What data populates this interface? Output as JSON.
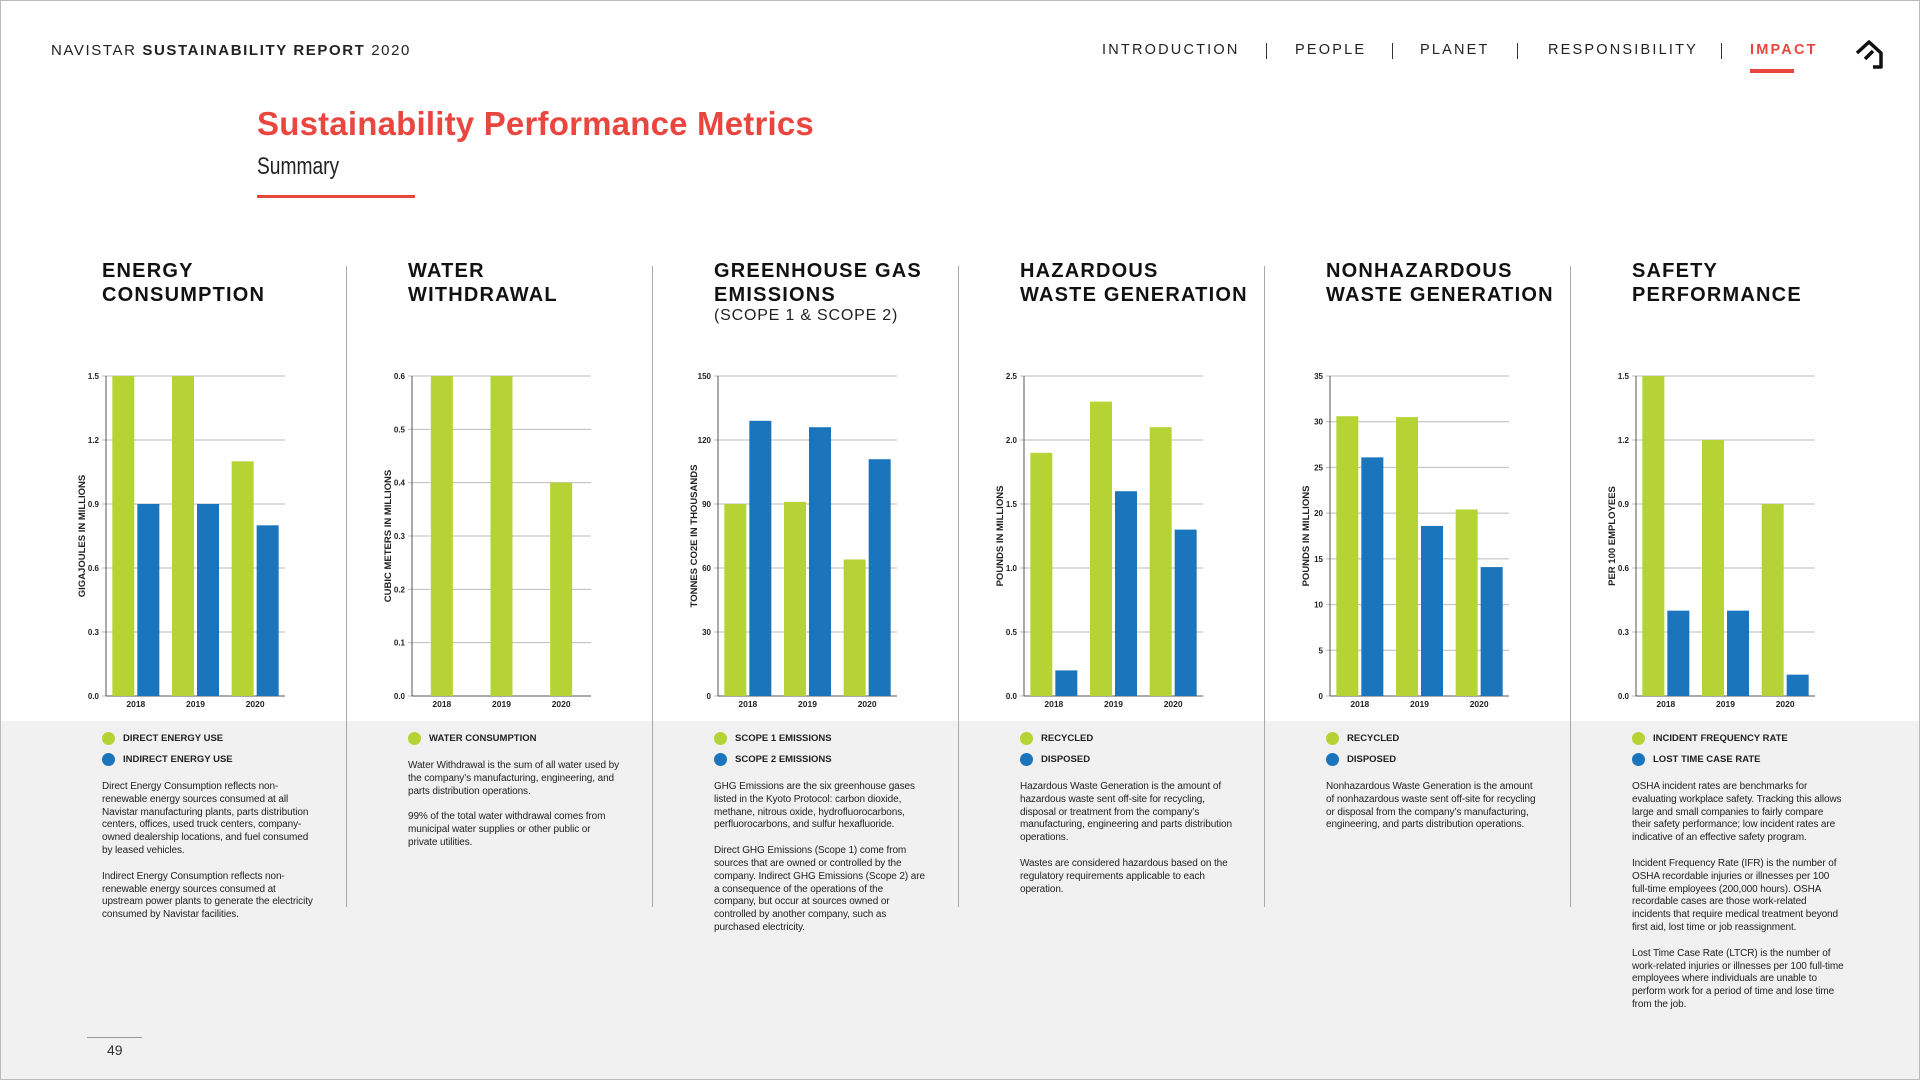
{
  "header": {
    "title_parts": [
      "NAVISTAR",
      "SUSTAINABILITY REPORT",
      "2020"
    ]
  },
  "nav": {
    "items": [
      "INTRODUCTION",
      "PEOPLE",
      "PLANET",
      "RESPONSIBILITY",
      "IMPACT"
    ],
    "active": "IMPACT"
  },
  "page_title": "Sustainability Performance Metrics",
  "page_subtitle": "Summary",
  "page_number": "49",
  "chart_data": [
    {
      "type": "bar",
      "title": "ENERGY\nCONSUMPTION",
      "ylabel": "GIGAJOULES IN MILLIONS",
      "categories": [
        "2018",
        "2019",
        "2020"
      ],
      "series": [
        {
          "name": "DIRECT ENERGY USE",
          "color": "#b5d334",
          "values": [
            1.5,
            1.5,
            1.1
          ]
        },
        {
          "name": "INDIRECT ENERGY USE",
          "color": "#1a75bc",
          "values": [
            0.9,
            0.9,
            0.8
          ]
        }
      ],
      "ylim": [
        0,
        1.5
      ],
      "yticks": [
        {
          "value": 0,
          "label": "0.0"
        },
        0.3,
        0.6,
        0.9,
        1.2,
        1.5
      ],
      "grid": true,
      "description": [
        "Direct Energy Consumption reflects non-renewable energy sources consumed at all Navistar manufacturing plants, parts distribution centers, offices, used truck centers, company-owned dealership locations, and fuel consumed by leased vehicles.",
        "Indirect Energy Consumption reflects non-renewable energy sources consumed at upstream power plants to generate the electricity consumed by Navistar facilities."
      ]
    },
    {
      "type": "bar",
      "title": "WATER\nWITHDRAWAL",
      "ylabel": "CUBIC METERS IN MILLIONS",
      "categories": [
        "2018",
        "2019",
        "2020"
      ],
      "series": [
        {
          "name": "WATER CONSUMPTION",
          "color": "#b5d334",
          "values": [
            0.6,
            0.6,
            0.4
          ]
        }
      ],
      "ylim": [
        0,
        0.6
      ],
      "yticks": [
        {
          "value": 0,
          "label": "0.0"
        },
        0.1,
        0.2,
        0.3,
        0.4,
        0.5,
        0.6
      ],
      "grid": true,
      "description": [
        "Water Withdrawal is the sum of all water used by the company’s manufacturing, engineering, and parts distribution operations.",
        "99% of the total water withdrawal comes from municipal water supplies or other public or private utilities."
      ]
    },
    {
      "type": "bar",
      "title": "GREENHOUSE GAS\nEMISSIONS",
      "subtitle": "(SCOPE 1 & SCOPE 2)",
      "ylabel": "TONNES CO2E IN THOUSANDS",
      "categories": [
        "2018",
        "2019",
        "2020"
      ],
      "series": [
        {
          "name": "SCOPE 1 EMISSIONS",
          "color": "#b5d334",
          "values": [
            90,
            91,
            64
          ]
        },
        {
          "name": "SCOPE 2 EMISSIONS",
          "color": "#1a75bc",
          "values": [
            129,
            126,
            111
          ]
        }
      ],
      "ylim": [
        0,
        150
      ],
      "yticks": [
        0,
        30,
        60,
        90,
        120,
        150
      ],
      "grid": true,
      "description": [
        "GHG Emissions are the six greenhouse gases listed in the Kyoto Protocol: carbon dioxide, methane, nitrous oxide, hydrofluorocarbons, perfluorocarbons, and sulfur hexafluoride.",
        "Direct GHG Emissions (Scope 1) come from sources that are owned or controlled by the company. Indirect GHG Emissions (Scope 2) are a consequence of the operations of the company, but occur at sources owned or controlled by another company, such as purchased electricity."
      ]
    },
    {
      "type": "bar",
      "title": "HAZARDOUS\nWASTE GENERATION",
      "ylabel": "POUNDS IN MILLIONS",
      "categories": [
        "2018",
        "2019",
        "2020"
      ],
      "series": [
        {
          "name": "RECYCLED",
          "color": "#b5d334",
          "values": [
            1.9,
            2.3,
            2.1
          ]
        },
        {
          "name": "DISPOSED",
          "color": "#1a75bc",
          "values": [
            0.2,
            1.6,
            1.3
          ]
        }
      ],
      "ylim": [
        0,
        2.5
      ],
      "yticks": [
        {
          "value": 0,
          "label": "0.0"
        },
        0.5,
        {
          "value": 1,
          "label": "1.0"
        },
        1.5,
        {
          "value": 2,
          "label": "2.0"
        },
        2.5
      ],
      "grid": true,
      "description": [
        "Hazardous Waste Generation is the amount of hazardous waste sent off-site for recycling, disposal or treatment from the company’s manufacturing, engineering and parts distribution operations.",
        "Wastes are considered hazardous based on the regulatory requirements applicable to each operation."
      ]
    },
    {
      "type": "bar",
      "title": "NONHAZARDOUS\nWASTE GENERATION",
      "ylabel": "POUNDS IN MILLIONS",
      "categories": [
        "2018",
        "2019",
        "2020"
      ],
      "series": [
        {
          "name": "RECYCLED",
          "color": "#b5d334",
          "values": [
            30.6,
            30.5,
            20.4
          ]
        },
        {
          "name": "DISPOSED",
          "color": "#1a75bc",
          "values": [
            26.1,
            18.6,
            14.1
          ]
        }
      ],
      "ylim": [
        0,
        35
      ],
      "yticks": [
        0,
        5,
        10,
        15,
        20,
        25,
        30,
        35
      ],
      "grid": true,
      "description": [
        "Nonhazardous Waste Generation is the amount of nonhazardous waste sent off-site for recycling or disposal from the company’s manufacturing, engineering, and parts distribution operations."
      ]
    },
    {
      "type": "bar",
      "title": "SAFETY\nPERFORMANCE",
      "ylabel": "PER 100 EMPLOYEES",
      "categories": [
        "2018",
        "2019",
        "2020"
      ],
      "series": [
        {
          "name": "INCIDENT FREQUENCY RATE",
          "color": "#b5d334",
          "values": [
            1.5,
            1.2,
            0.9
          ]
        },
        {
          "name": "LOST TIME CASE RATE",
          "color": "#1a75bc",
          "values": [
            0.4,
            0.4,
            0.1
          ]
        }
      ],
      "ylim": [
        0,
        1.5
      ],
      "yticks": [
        {
          "value": 0,
          "label": "0.0"
        },
        0.3,
        0.6,
        0.9,
        1.2,
        1.5
      ],
      "grid": true,
      "description": [
        "OSHA incident rates are benchmarks for evaluating workplace safety. Tracking this allows large and small companies to fairly compare their safety performance; low incident rates are indicative of an effective safety program.",
        "Incident Frequency Rate (IFR) is the number of OSHA recordable injuries or illnesses per 100 full-time employees (200,000 hours). OSHA recordable cases are those work-related incidents that require medical treatment beyond first aid, lost time or job reassignment.",
        "Lost Time Case Rate (LTCR) is the number of work-related injuries or illnesses per 100 full-time employees where individuals are unable to perform work for a period of time and lose time from the job."
      ]
    }
  ]
}
